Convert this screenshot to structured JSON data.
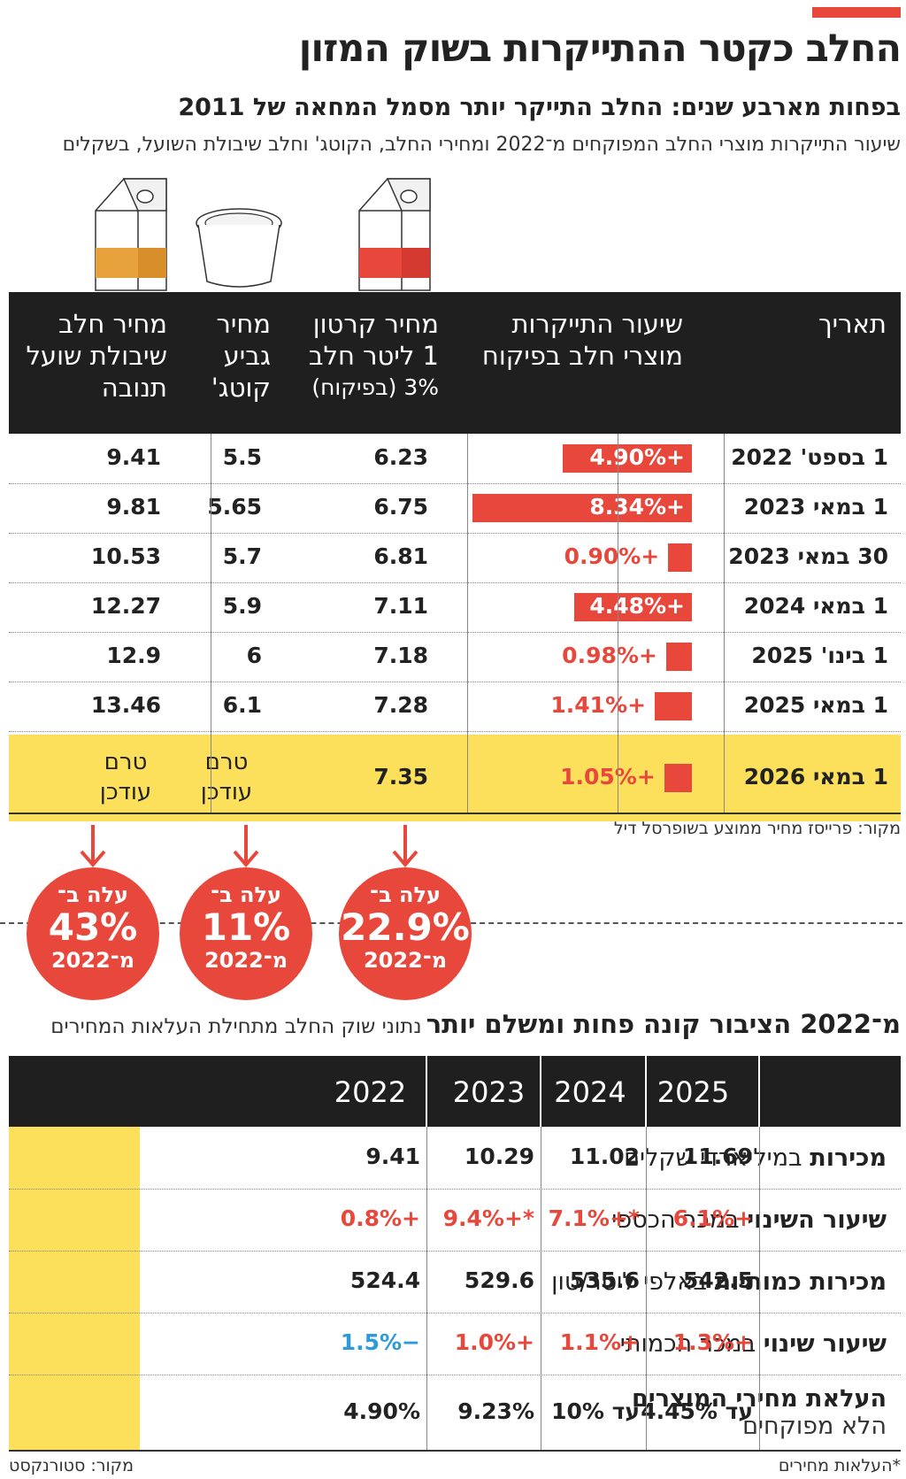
{
  "title": "החלב כקטר ההתייקרות בשוק המזון",
  "subtitle": "בפחות מארבע שנים: החלב התייקר יותר מסמל המחאה של 2011",
  "description": "שיעור התייקרות מוצרי החלב המפוקחים מ־2022 ומחירי החלב, הקוטג' וחלב שיבולת השועל, בשקלים",
  "colors": {
    "accent": "#e8483c",
    "highlight": "#fce05c",
    "header": "#1f1f1f",
    "negative": "#2e9bd6"
  },
  "icons": [
    "oat-milk-carton-icon",
    "cottage-cheese-cup-icon",
    "milk-carton-icon"
  ],
  "table1": {
    "headers": {
      "date": "תאריך",
      "rate": "שיעור התייקרות מוצרי חלב בפיקוח",
      "milk": "מחיר קרטון 1 ליטר חלב",
      "milk_note": "3% (בפיקוח)",
      "cottage": "מחיר גביע קוטג'",
      "oat": "מחיר חלב שיבולת שועל תנובה"
    },
    "source": "מקור: פרייסז מחיר ממוצע בשופרסל דיל"
  },
  "chart_data": {
    "type": "table",
    "columns": [
      "תאריך",
      "שיעור התייקרות מוצרי חלב בפיקוח",
      "מחיר קרטון 1 ליטר חלב 3% (בפיקוח)",
      "מחיר גביע קוטג'",
      "מחיר חלב שיבולת שועל תנובה"
    ],
    "rows": [
      {
        "date": "1 בספט' 2022",
        "rate": 4.9,
        "rate_label": "+4.90%",
        "milk": "6.23",
        "cottage": "5.5",
        "oat": "9.41"
      },
      {
        "date": "1 במאי 2023",
        "rate": 8.34,
        "rate_label": "+8.34%",
        "milk": "6.75",
        "cottage": "5.65",
        "oat": "9.81"
      },
      {
        "date": "30 במאי 2023",
        "rate": 0.9,
        "rate_label": "+0.90%",
        "milk": "6.81",
        "cottage": "5.7",
        "oat": "10.53"
      },
      {
        "date": "1 במאי 2024",
        "rate": 4.48,
        "rate_label": "+4.48%",
        "milk": "7.11",
        "cottage": "5.9",
        "oat": "12.27"
      },
      {
        "date": "1 בינו' 2025",
        "rate": 0.98,
        "rate_label": "+0.98%",
        "milk": "7.18",
        "cottage": "6",
        "oat": "12.9"
      },
      {
        "date": "1 במאי 2025",
        "rate": 1.41,
        "rate_label": "+1.41%",
        "milk": "7.28",
        "cottage": "6.1",
        "oat": "13.46"
      },
      {
        "date": "1 במאי 2026",
        "rate": 1.05,
        "rate_label": "+1.05%",
        "milk": "7.35",
        "cottage": "טרם עודכן",
        "oat": "טרם עודכן"
      }
    ],
    "bar_max": 8.34
  },
  "circles": [
    {
      "top": "עלה ב־",
      "value": "22.9%",
      "bottom": "מ־2022"
    },
    {
      "top": "עלה ב־",
      "value": "11%",
      "bottom": "מ־2022"
    },
    {
      "top": "עלה ב־",
      "value": "43%",
      "bottom": "מ־2022"
    }
  ],
  "section2": {
    "title": "מ־2022 הציבור קונה פחות ומשלם יותר",
    "title_note": "נתוני שוק החלב מתחילת העלאות המחירים",
    "years": [
      "2022",
      "2023",
      "2024",
      "2025"
    ],
    "rows": [
      {
        "label_bold": "מכירות",
        "label_rest": "במיליארדי שקלים",
        "values": [
          "9.41",
          "10.29",
          "11.02",
          "11.69"
        ]
      },
      {
        "label_bold": "שיעור השינוי",
        "label_rest": "במכר הכספי",
        "values": [
          "+0.8%",
          "*+9.4%",
          "*+7.1%",
          "+6.1%"
        ]
      },
      {
        "label_bold": "מכירות כמותיות",
        "label_rest": "באלפי ליטר/טון",
        "values": [
          "524.4",
          "529.6",
          "535.6",
          "542.5"
        ]
      },
      {
        "label_bold": "שיעור שינוי",
        "label_rest": "במכר הכמותי",
        "values": [
          "-1.5%",
          "+1.0%",
          "+1.1%",
          "+1.3%"
        ]
      },
      {
        "label_bold": "העלאת מחירי המוצרים",
        "label_rest": "הלא מפוקחים",
        "values": [
          "4.90%",
          "9.23%",
          "עד 10%",
          "עד 4.45%"
        ]
      }
    ],
    "footnote": "*העלאות מחירים",
    "source": "מקור: סטורנקסט"
  }
}
